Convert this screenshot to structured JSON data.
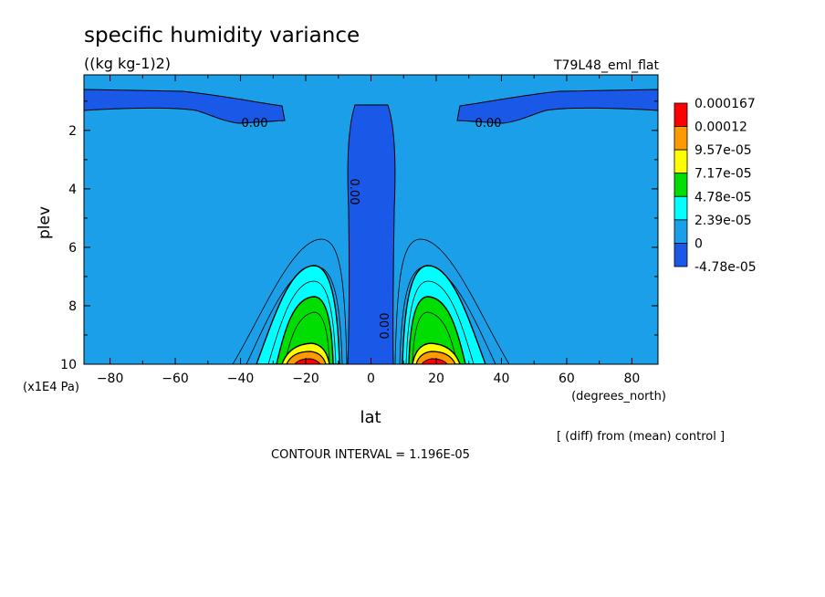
{
  "chart_data": {
    "type": "heatmap",
    "title": "specific humidity variance",
    "units_label": "((kg kg-1)2)",
    "experiment": "T79L48_eml_flat",
    "xlabel": "lat",
    "xunits": "(degrees_north)",
    "ylabel": "plev",
    "yunits": "(x1E4 Pa)",
    "xlim": [
      -88,
      88
    ],
    "ylim": [
      10,
      0.1
    ],
    "x_ticks": [
      -80,
      -60,
      -40,
      -20,
      0,
      20,
      40,
      60,
      80
    ],
    "x_tick_labels": [
      "−80",
      "−60",
      "−40",
      "−20",
      "0",
      "20",
      "40",
      "60",
      "80"
    ],
    "y_ticks": [
      2,
      4,
      6,
      8,
      10
    ],
    "y_tick_labels": [
      "2",
      "4",
      "6",
      "8",
      "10"
    ],
    "contour_labels": [
      "0.00",
      "0.00",
      "0.00",
      "0.00"
    ],
    "legend": {
      "placement": "right",
      "levels": [
        "0.000167",
        "0.00012",
        "9.57e-05",
        "7.17e-05",
        "4.78e-05",
        "2.39e-05",
        "0",
        "-4.78e-05"
      ],
      "colors": [
        "#ff0000",
        "#ff9900",
        "#ffff00",
        "#00dd00",
        "#00ffff",
        "#1a9fe8",
        "#1a58e8"
      ]
    },
    "colors": {
      "background_field": "#1a9fe8",
      "negative_field": "#1a58e8"
    },
    "diff_note": "[ (diff) from (mean) control ]",
    "contour_interval": "CONTOUR INTERVAL = 1.196E-05"
  }
}
